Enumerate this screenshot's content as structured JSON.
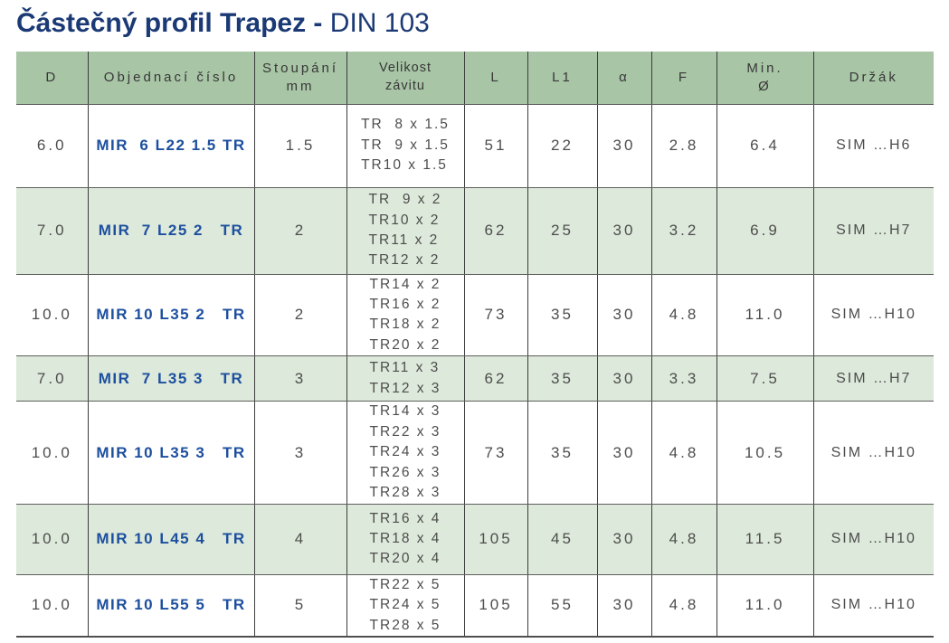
{
  "title": {
    "main": "Částečný profil Trapez -",
    "suffix": " DIN 103"
  },
  "colors": {
    "title-navy": "#1b3a75",
    "order-blue": "#1c4f9f",
    "min-teal": "#49a2a4",
    "header-green": "#a8c5a6",
    "row-green": "#dde9da",
    "cell-text": "#4d4d4d"
  },
  "table": {
    "fields": [
      "d",
      "order",
      "pitch",
      "thread",
      "l",
      "l1",
      "alpha",
      "f",
      "min_d",
      "holder"
    ],
    "headers": [
      "D",
      "Objednací číslo",
      "Stoupání\nmm",
      "Velikost\nzávitu",
      "L",
      "L1",
      "α",
      "F",
      "Min.\nØ",
      "Držák"
    ],
    "rows": [
      {
        "d": "6.0",
        "order": "MIR  6 L22 1.5 TR",
        "pitch": "1.5",
        "thread": "TR  8 x 1.5\nTR  9 x 1.5\nTR10 x 1.5",
        "l": "51",
        "l1": "22",
        "alpha": "30",
        "f": "2.8",
        "min_d": "6.4",
        "holder": "SIM …H6"
      },
      {
        "d": "7.0",
        "order": "MIR  7 L25 2   TR",
        "pitch": "2",
        "thread": "TR  9 x 2\nTR10 x 2\nTR11 x 2\nTR12 x 2",
        "l": "62",
        "l1": "25",
        "alpha": "30",
        "f": "3.2",
        "min_d": "6.9",
        "holder": "SIM …H7"
      },
      {
        "d": "10.0",
        "order": "MIR 10 L35 2   TR",
        "pitch": "2",
        "thread": "TR14 x 2\nTR16 x 2\nTR18 x 2\nTR20 x 2",
        "l": "73",
        "l1": "35",
        "alpha": "30",
        "f": "4.8",
        "min_d": "11.0",
        "holder": "SIM …H10"
      },
      {
        "d": "7.0",
        "order": "MIR  7 L35 3   TR",
        "pitch": "3",
        "thread": "TR11 x 3\nTR12 x 3",
        "l": "62",
        "l1": "35",
        "alpha": "30",
        "f": "3.3",
        "min_d": "7.5",
        "holder": "SIM …H7"
      },
      {
        "d": "10.0",
        "order": "MIR 10 L35 3   TR",
        "pitch": "3",
        "thread": "TR14 x 3\nTR22 x 3\nTR24 x 3\nTR26 x 3\nTR28 x 3",
        "l": "73",
        "l1": "35",
        "alpha": "30",
        "f": "4.8",
        "min_d": "10.5",
        "holder": "SIM …H10"
      },
      {
        "d": "10.0",
        "order": "MIR 10 L45 4   TR",
        "pitch": "4",
        "thread": "TR16 x 4\nTR18 x 4\nTR20 x 4",
        "l": "105",
        "l1": "45",
        "alpha": "30",
        "f": "4.8",
        "min_d": "11.5",
        "holder": "SIM …H10"
      },
      {
        "d": "10.0",
        "order": "MIR 10 L55 5   TR",
        "pitch": "5",
        "thread": "TR22 x 5\nTR24 x 5\nTR28 x 5",
        "l": "105",
        "l1": "55",
        "alpha": "30",
        "f": "4.8",
        "min_d": "11.0",
        "holder": "SIM …H10"
      }
    ]
  }
}
